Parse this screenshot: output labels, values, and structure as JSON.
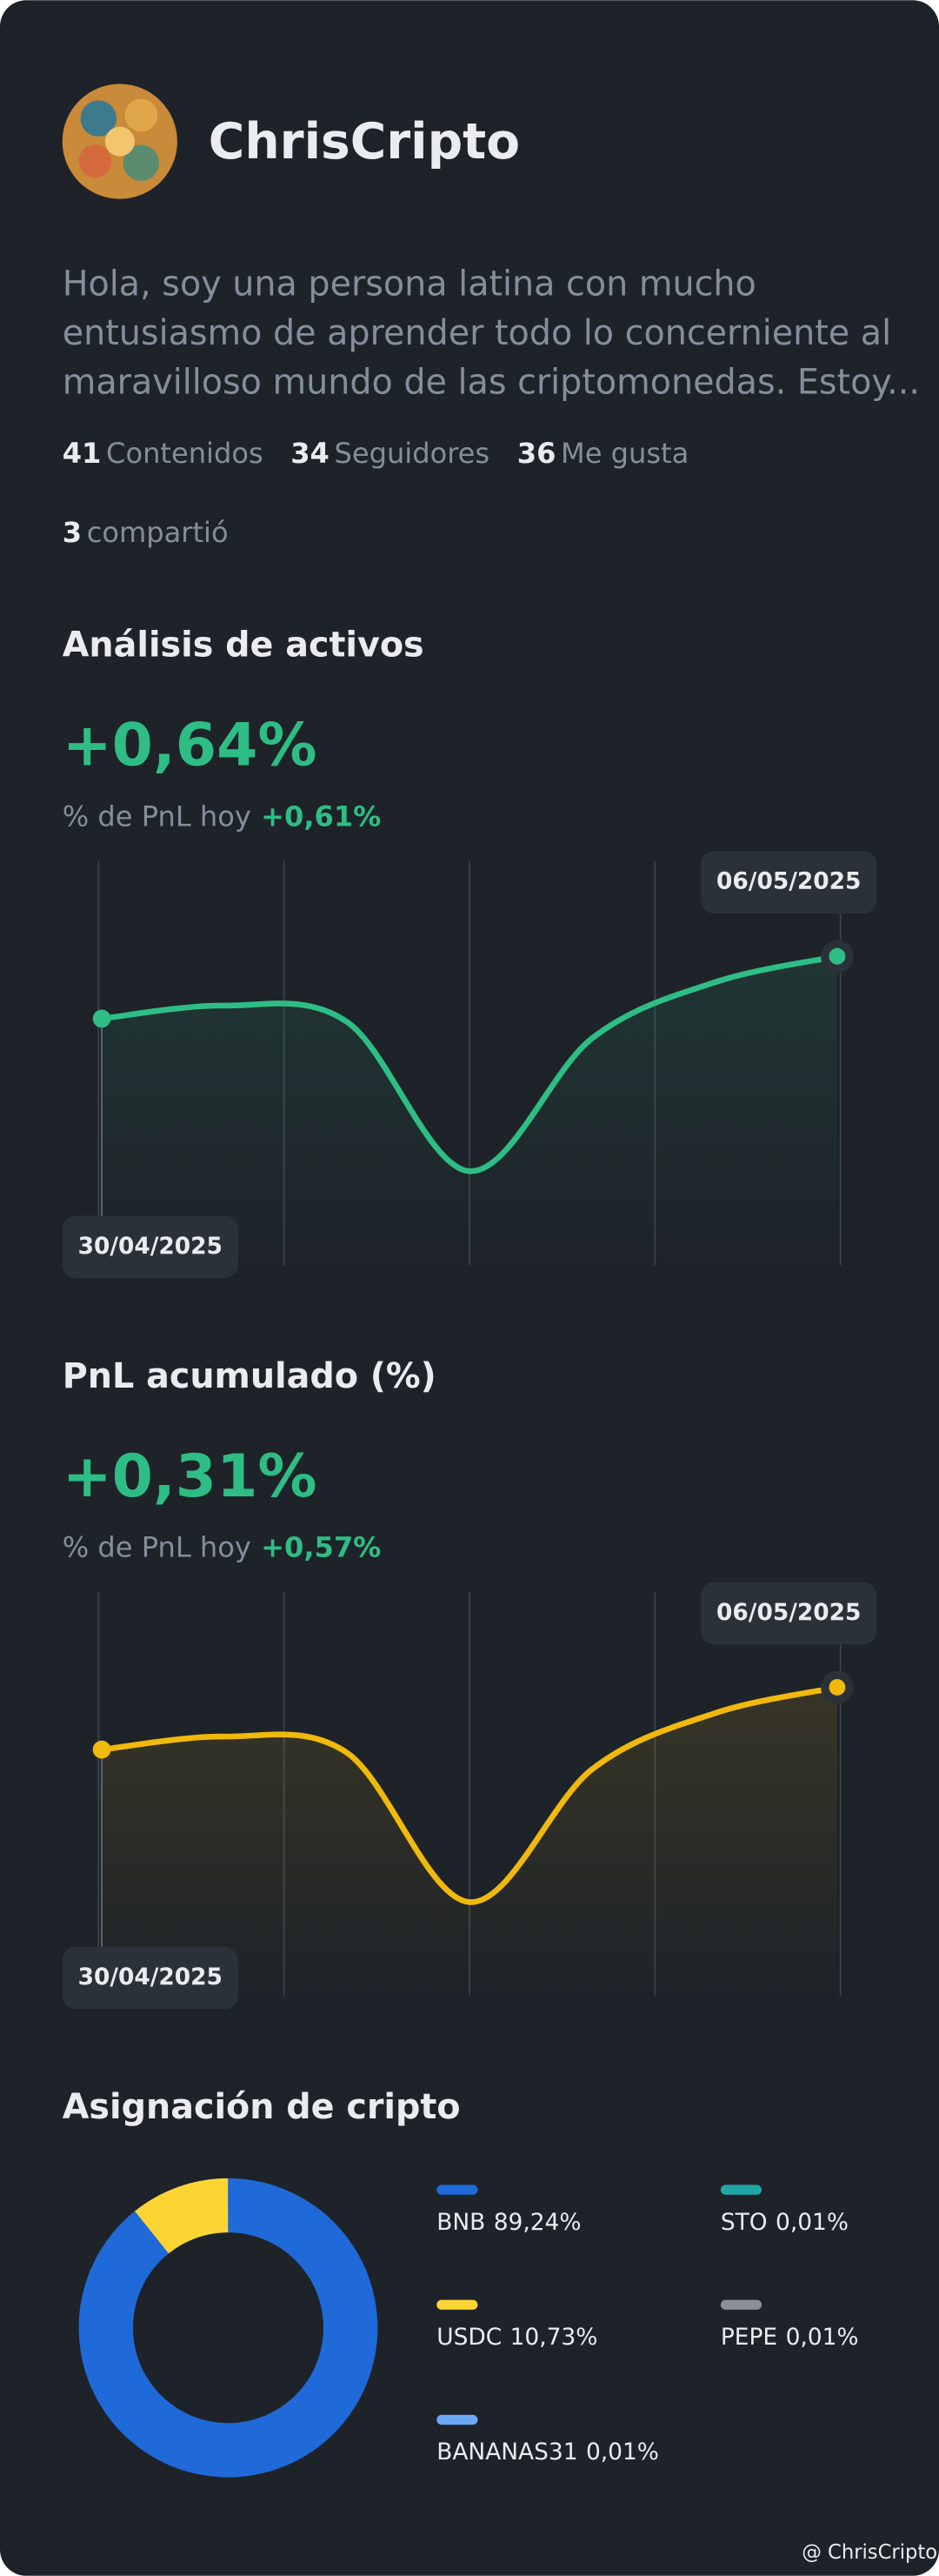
{
  "profile": {
    "name": "ChrisCripto",
    "bio_lines": [
      "Hola, soy una persona latina con mucho",
      "entusiasmo de aprender todo lo concerniente al",
      "maravilloso mundo de las criptomonedas. Estoy..."
    ],
    "stats": [
      {
        "value": "41",
        "label": "Contenidos"
      },
      {
        "value": "34",
        "label": "Seguidores"
      },
      {
        "value": "36",
        "label": "Me gusta"
      },
      {
        "value": "3",
        "label": "compartió"
      }
    ]
  },
  "chart_data": [
    {
      "type": "line",
      "title": "Análisis de activos",
      "headline": "+0,64%",
      "subtitle": "% de PnL hoy",
      "highlight": "+0,61%",
      "categories": [
        "30/04/2025",
        null,
        null,
        null,
        null,
        null,
        "06/05/2025"
      ],
      "values": [
        62.5,
        65.8,
        61.7,
        23.8,
        57.5,
        71.7,
        78.3
      ],
      "ylim": [
        0,
        100
      ],
      "color": "#2ebd85"
    },
    {
      "type": "line",
      "title": "PnL acumulado (%)",
      "headline": "+0,31%",
      "subtitle": "% de PnL hoy",
      "highlight": "+0,57%",
      "categories": [
        "30/04/2025",
        null,
        null,
        null,
        null,
        null,
        "06/05/2025"
      ],
      "values": [
        62.5,
        65.8,
        61.7,
        23.8,
        57.5,
        71.7,
        78.3
      ],
      "ylim": [
        0,
        100
      ],
      "color": "#f0b90b"
    },
    {
      "type": "pie",
      "title": "Asignación de cripto",
      "categories": [
        "BNB",
        "STO",
        "USDC",
        "PEPE",
        "BANANAS31"
      ],
      "values": [
        89.24,
        0.01,
        10.73,
        0.01,
        0.01
      ],
      "value_labels": [
        "89,24%",
        "0,01%",
        "10,73%",
        "0,01%",
        "0,01%"
      ],
      "colors": [
        "#1f6ad8",
        "#1fa5a5",
        "#fcd535",
        "#8a8f99",
        "#6ea8f5"
      ]
    }
  ],
  "watermark": "@ ChrisCripto"
}
